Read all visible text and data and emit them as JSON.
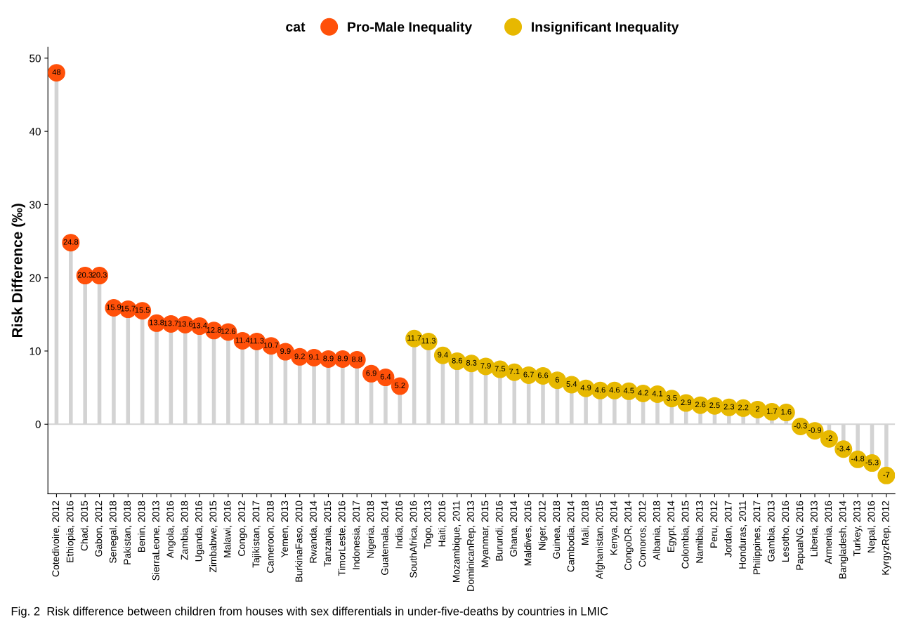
{
  "chart_data": {
    "type": "lollipop",
    "ylabel": "Risk Difference (‰)",
    "legend_title": "cat",
    "legend": "top",
    "categories": [
      "Cotedivoire, 2012",
      "Ethiopia, 2016",
      "Chad, 2015",
      "Gabon, 2012",
      "Senegal, 2018",
      "Pakistan, 2018",
      "Benin, 2018",
      "SierraLeone, 2013",
      "Angola, 2016",
      "Zambia, 2018",
      "Uganda, 2016",
      "Zimbabwe, 2015",
      "Malawi, 2016",
      "Congo, 2012",
      "Tajikistan, 2017",
      "Cameroon, 2018",
      "Yemen, 2013",
      "BurkinaFaso, 2010",
      "Rwanda, 2014",
      "Tanzania, 2015",
      "TimorLeste, 2016",
      "Indonesia, 2017",
      "Nigeria, 2018",
      "Guatemala, 2014",
      "India, 2016",
      "SouthAfrica, 2016",
      "Togo, 2013",
      "Haiti, 2016",
      "Mozambique, 2011",
      "DominicanRep, 2013",
      "Myanmar, 2015",
      "Burundi, 2016",
      "Ghana, 2014",
      "Maldives, 2016",
      "Niger, 2012",
      "Guinea, 2018",
      "Cambodia, 2014",
      "Mali, 2018",
      "Afghanistan, 2015",
      "Kenya, 2014",
      "CongoDR, 2014",
      "Comoros, 2012",
      "Albania, 2018",
      "Egypt, 2014",
      "Colombia, 2015",
      "Namibia, 2013",
      "Peru, 2012",
      "Jordan, 2017",
      "Honduras, 2011",
      "Philippines, 2017",
      "Gambia, 2013",
      "Lesotho, 2016",
      "PapuaNG, 2016",
      "Liberia, 2013",
      "Armenia, 2016",
      "Bangladesh, 2014",
      "Turkey, 2013",
      "Nepal, 2016",
      "KyrgyzRep, 2012"
    ],
    "series": [
      {
        "name": "Pro-Male Inequality",
        "color": "#ff5009",
        "values": [
          48,
          24.8,
          20.3,
          20.3,
          15.9,
          15.7,
          15.5,
          13.8,
          13.7,
          13.6,
          13.4,
          12.8,
          12.6,
          11.4,
          11.3,
          10.7,
          9.9,
          9.2,
          9.1,
          8.9,
          8.9,
          8.8,
          6.9,
          6.4,
          5.2,
          null,
          null,
          null,
          null,
          null,
          null,
          null,
          null,
          null,
          null,
          null,
          null,
          null,
          null,
          null,
          null,
          null,
          null,
          null,
          null,
          null,
          null,
          null,
          null,
          null,
          null,
          null,
          null,
          null,
          null,
          null,
          null,
          null,
          null
        ]
      },
      {
        "name": "Insignificant Inequality",
        "color": "#e7b800",
        "values": [
          null,
          null,
          null,
          null,
          null,
          null,
          null,
          null,
          null,
          null,
          null,
          null,
          null,
          null,
          null,
          null,
          null,
          null,
          null,
          null,
          null,
          null,
          null,
          null,
          null,
          11.7,
          11.3,
          9.4,
          8.6,
          8.3,
          7.9,
          7.5,
          7.1,
          6.7,
          6.6,
          6,
          5.4,
          4.9,
          4.6,
          4.6,
          4.5,
          4.2,
          4.1,
          3.5,
          2.9,
          2.6,
          2.5,
          2.3,
          2.2,
          2,
          1.7,
          1.6,
          -0.3,
          -0.9,
          -2,
          -3.4,
          -4.8,
          -5.3,
          -7
        ]
      }
    ],
    "ylim": [
      -9.5,
      51.5
    ],
    "yticks": [
      0,
      10,
      20,
      30,
      40,
      50
    ],
    "grid": false,
    "data_labels": true,
    "marker": "circle",
    "ref_lines": [
      {
        "axis": "y",
        "value": 0,
        "color": "#d3d3d3"
      }
    ],
    "annotations": [
      "Fig. 2  Risk difference between children from houses with sex differentials in under-five-deaths by countries in LMIC"
    ]
  }
}
